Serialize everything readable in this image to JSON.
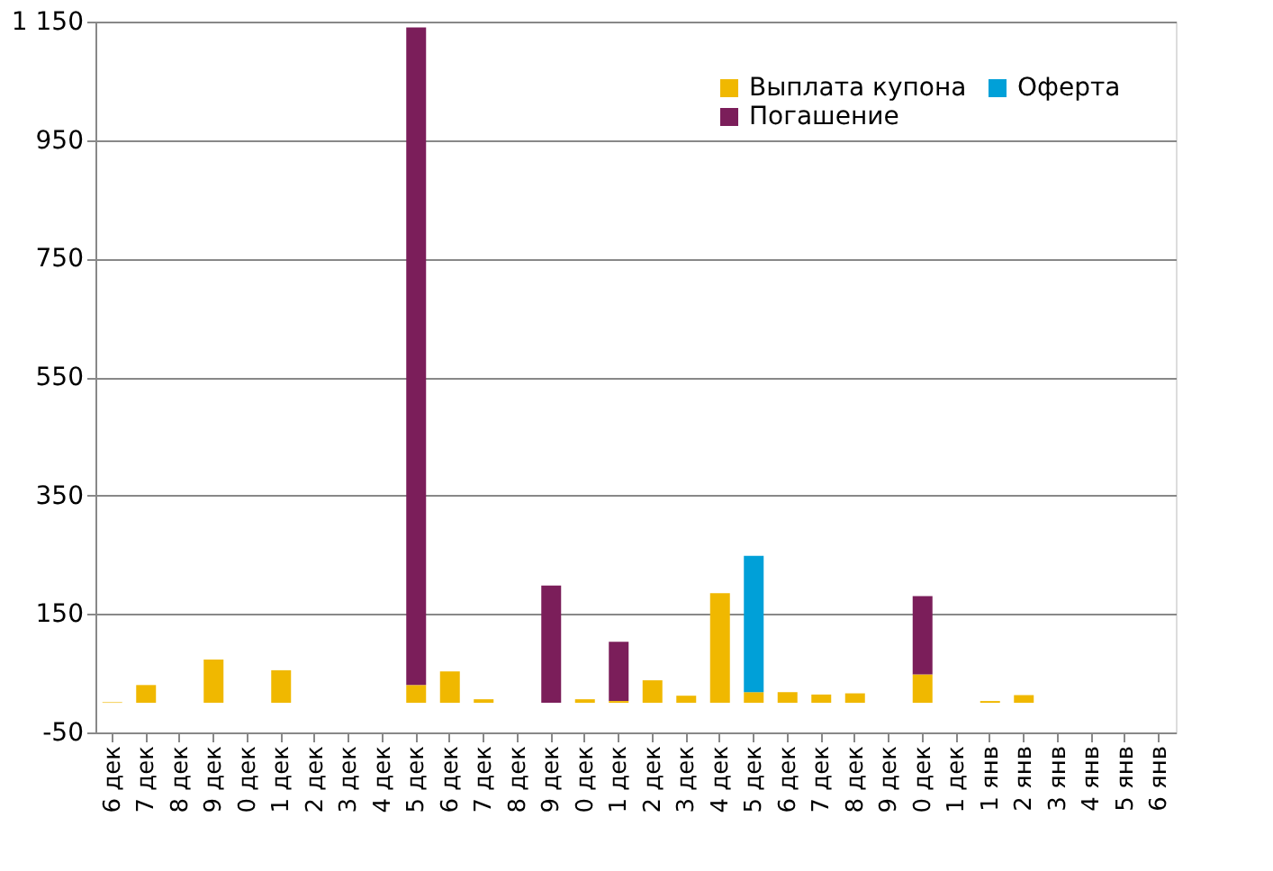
{
  "chart_data": {
    "type": "bar",
    "stacked": true,
    "categories": [
      "6 дек",
      "7 дек",
      "8 дек",
      "9 дек",
      "0 дек",
      "1 дек",
      "2 дек",
      "3 дек",
      "4 дек",
      "5 дек",
      "6 дек",
      "7 дек",
      "8 дек",
      "9 дек",
      "0 дек",
      "1 дек",
      "2 дек",
      "3 дек",
      "4 дек",
      "5 дек",
      "6 дек",
      "7 дек",
      "8 дек",
      "9 дек",
      "0 дек",
      "1 дек",
      "1 янв",
      "2 янв",
      "3 янв",
      "4 янв",
      "5 янв",
      "6 янв"
    ],
    "series": [
      {
        "name": "Выплата купона",
        "color": "#f0b800",
        "values": [
          1,
          30,
          0,
          73,
          0,
          55,
          0,
          0,
          0,
          30,
          53,
          6,
          0,
          0,
          6,
          3,
          38,
          12,
          185,
          18,
          18,
          14,
          16,
          0,
          48,
          0,
          3,
          13,
          0,
          0,
          0,
          0
        ]
      },
      {
        "name": "Погашение",
        "color": "#7b1e5a",
        "values": [
          0,
          0,
          0,
          0,
          0,
          0,
          0,
          0,
          0,
          1110,
          0,
          0,
          0,
          198,
          0,
          100,
          0,
          0,
          0,
          0,
          0,
          0,
          0,
          0,
          132,
          0,
          0,
          0,
          0,
          0,
          0,
          0
        ]
      },
      {
        "name": "Оферта",
        "color": "#00a0d8",
        "values": [
          0,
          0,
          0,
          0,
          0,
          0,
          0,
          0,
          0,
          0,
          0,
          0,
          0,
          0,
          0,
          0,
          0,
          0,
          0,
          230,
          0,
          0,
          0,
          0,
          0,
          0,
          0,
          0,
          0,
          0,
          0,
          0
        ]
      }
    ],
    "ylim": [
      -50,
      1150
    ],
    "yticks": [
      -50,
      150,
      350,
      550,
      750,
      950,
      {
        "value": 1150,
        "label": "1 150"
      }
    ],
    "grid": "y",
    "legend": "top right"
  }
}
